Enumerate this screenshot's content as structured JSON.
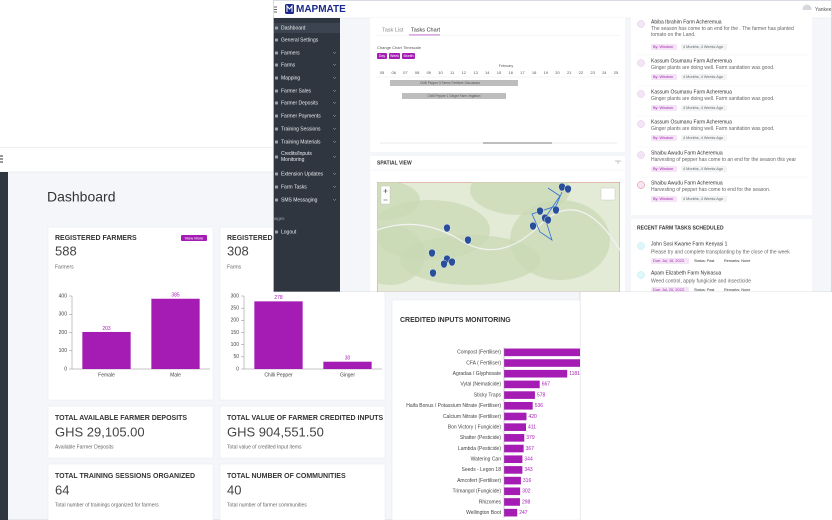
{
  "app": {
    "logo": "MAPMATE",
    "user": "Yankee"
  },
  "sidebar": {
    "items": [
      "Dashboard",
      "General Settings",
      "Farmers",
      "Farms",
      "Mapping",
      "Farmer Sales",
      "Farmer Deposits",
      "Farmer Payments",
      "Training Sessions",
      "Training Materials",
      "Credits/Inputs Monitoring",
      "Extension Updates",
      "Farm Tasks",
      "SMS Messaging"
    ],
    "section": "Manages",
    "logout": "Logout"
  },
  "task_panel": {
    "tabs": [
      "Task List",
      "Tasks Chart"
    ],
    "timescale_label": "Change Chart Timescale",
    "timescale_buttons": [
      "Day",
      "Week",
      "Month"
    ],
    "month": "February",
    "days": [
      "05",
      "06",
      "07",
      "08",
      "09",
      "10",
      "11",
      "12",
      "13",
      "14",
      "15",
      "16",
      "17",
      "18",
      "19",
      "20",
      "21",
      "22",
      "23",
      "24",
      "25"
    ],
    "tasks": [
      "Chilli Pepper 3 Farms Fertilizer Discussion",
      "Chilli Pepper 1 Ginger Farm Irrigation"
    ]
  },
  "spatial_view": {
    "title": "SPATIAL VIEW"
  },
  "activity": [
    {
      "title": "Abiba Ibrahim Farm Acheremua",
      "text": "The season has come to an end for the . The farmer has planted tomato on the Land.",
      "by": "By: Wisdom",
      "time": "4 Months, 4 Weeks Ago"
    },
    {
      "title": "Kassum Osumanu Farm Acheremua",
      "text": "Ginger plants are doing well. Farm sanitation was good.",
      "by": "By: Wisdom",
      "time": "4 Months, 4 Weeks Ago"
    },
    {
      "title": "Kassum Osumanu Farm Acheremua",
      "text": "Ginger plants are doing well. Farm sanitation was good.",
      "by": "By: Wisdom",
      "time": "4 Months, 4 Weeks Ago"
    },
    {
      "title": "Kassum Osumanu Farm Acheremua",
      "text": "Ginger plants are doing well. Farm sanitation was good.",
      "by": "By: Wisdom",
      "time": "4 Months, 4 Weeks Ago"
    },
    {
      "title": "Shaibu Awudu Farm Acheremua",
      "text": "Harvesting of pepper has come to an end for the season this year",
      "by": "By: Wisdom",
      "time": "4 Months, 4 Weeks Ago"
    },
    {
      "title": "Shaibu Awudu Farm Acheremua",
      "text": "Harvesting of pepper has come to end for the season.",
      "by": "By: Wisdom",
      "time": "4 Months, 4 Weeks Ago"
    }
  ],
  "recent_tasks": {
    "title": "RECENT FARM TASKS SCHEDULED",
    "items": [
      {
        "title": "John Sosi Kwame Farm Kenyasi 1",
        "text": "Please try and complete transplanting by the close of the week",
        "due": "Due: Jul, 16, 2023",
        "status": "Status: Past",
        "remarks": "Remarks: None"
      },
      {
        "title": "Apam Elizabeth Farm Nyinasua",
        "text": "Weed control, apply fungicide and insecticide",
        "due": "Due: Jul, 20, 2023",
        "status": "Status: Past",
        "remarks": "Remarks: None"
      }
    ]
  },
  "dashboard": {
    "title": "Dashboard",
    "chart_cards": [
      {
        "title": "REGISTERED FARMERS",
        "value": "588",
        "caption": "Farmers",
        "link": "View More"
      },
      {
        "title": "REGISTERED FARMS",
        "value": "308",
        "caption": "Farms"
      }
    ],
    "stats": [
      {
        "title": "TOTAL AVAILABLE FARMER DEPOSITS",
        "value": "GHS 29,105.00",
        "caption": "Available Farmer Deposits"
      },
      {
        "title": "TOTAL VALUE OF FARMER CREDITED INPUTS",
        "value": "GHS 904,551.50",
        "caption": "Total value of credited Input items"
      },
      {
        "title": "TOTAL TRAINING SESSIONS ORGANIZED",
        "value": "64",
        "caption": "Total number of trainings organized for farmers"
      },
      {
        "title": "TOTAL NUMBER OF COMMUNITIES",
        "value": "40",
        "caption": "Total number of farmer communities"
      }
    ]
  },
  "chart_data": [
    {
      "type": "bar",
      "categories": [
        "Female",
        "Male"
      ],
      "values": [
        203,
        385
      ],
      "color": "#a51cb5",
      "ylim": [
        0,
        400
      ],
      "yticks": [
        0,
        100,
        200,
        300,
        400
      ]
    },
    {
      "type": "bar",
      "categories": [
        "Chilli Pepper",
        "Ginger"
      ],
      "values": [
        278,
        30
      ],
      "color": "#a51cb5",
      "ylim": [
        0,
        300
      ],
      "yticks": [
        0,
        50,
        100,
        150,
        200,
        250,
        300
      ]
    },
    {
      "type": "bar",
      "horizontal": true,
      "title": "CREDITED INPUTS MONITORING",
      "categories": [
        "Compost (Fertiliser)",
        "CFA ( Fertiliser)",
        "Agradaa / Glyphosate",
        "Vytal (Nematicide)",
        "Sticky Traps",
        "Haifa Bonus / Potassium Nitrate (Fertiliser)",
        "Calcium Nitrate (Fertiliser)",
        "Bon Victory ( Fungicide)",
        "Shatter (Pesticide)",
        "Lambda (Pesticide)",
        "Watering Can",
        "Seeds - Legon 18",
        "Amcofert (Fertiliser)",
        "Trimangol (Fungicide)",
        "Rhizomes",
        "Wellington Boot"
      ],
      "values": [
        2500,
        2200,
        1181,
        667,
        578,
        536,
        420,
        411,
        379,
        367,
        344,
        343,
        316,
        302,
        298,
        247
      ],
      "color": "#a51cb5",
      "xlim": [
        0,
        3400
      ]
    }
  ]
}
